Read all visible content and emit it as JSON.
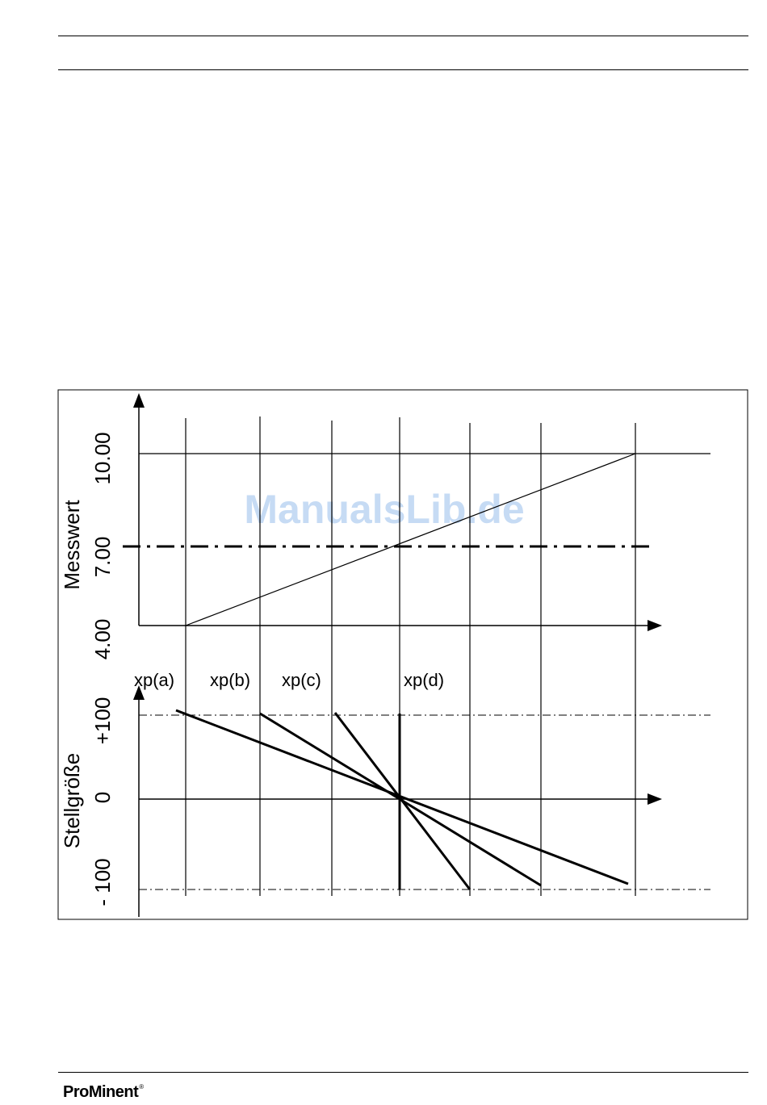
{
  "diagram": {
    "upper_axis": {
      "label": "Messwert",
      "ticks": [
        "4.00",
        "7.00",
        "10.00"
      ]
    },
    "lower_axis": {
      "label": "Stellgröße",
      "ticks": [
        "- 100",
        "0",
        "+100"
      ]
    },
    "xp_labels": [
      "xp(a)",
      "xp(b)",
      "xp(c)",
      "xp(d)"
    ],
    "watermark": "ManualsLib.de"
  },
  "footer": {
    "logo_text": "ProMinent",
    "logo_mark": "®"
  }
}
